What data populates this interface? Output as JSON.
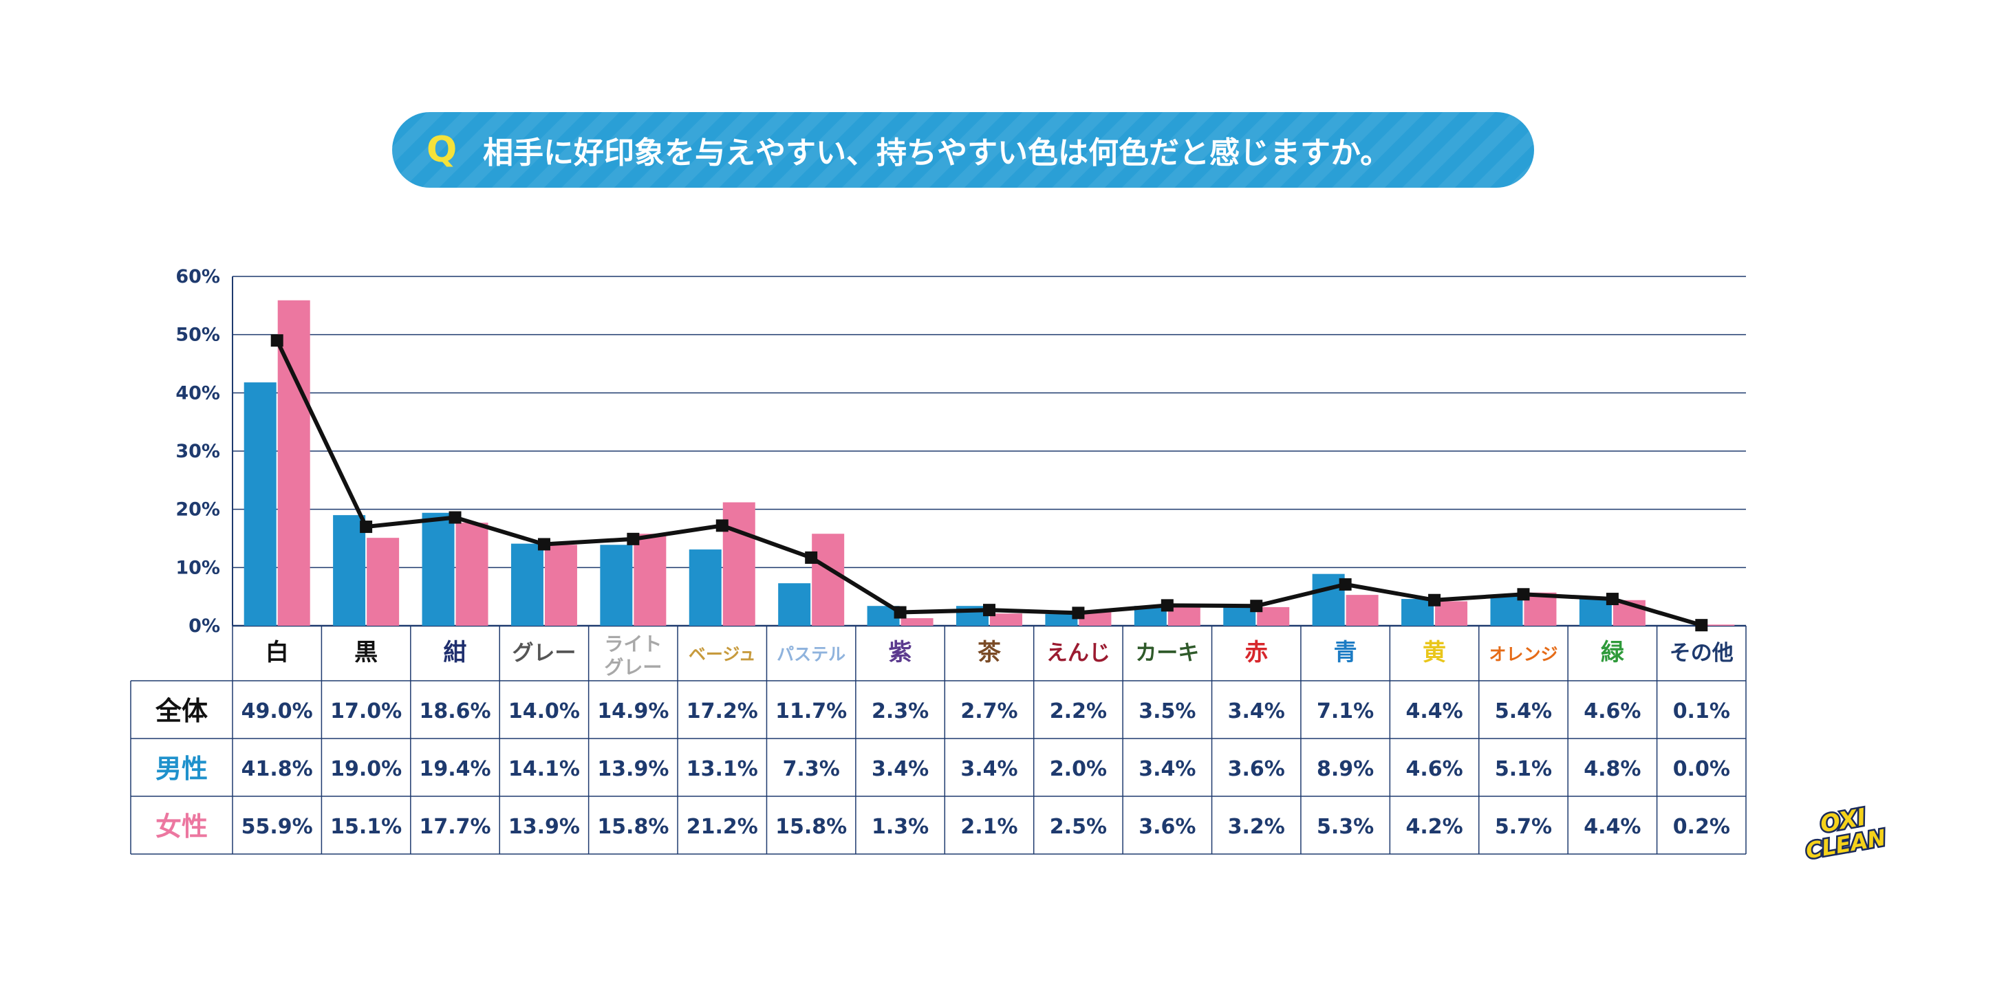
{
  "question": {
    "mark": "Q",
    "text": "相手に好印象を与えやすい、持ちやすい色は何色だと感じますか。"
  },
  "logo": {
    "line1": "OXI",
    "line2": "CLEAN"
  },
  "colors": {
    "male": "#1f91cc",
    "female": "#ec77a0",
    "overall": "#111111",
    "axis_text": "#1e3a6e",
    "grid": "#1e3a6e"
  },
  "chart_data": {
    "type": "bar",
    "title": "相手に好印象を与えやすい、持ちやすい色は何色だと感じますか。",
    "ylim": [
      0,
      60
    ],
    "yticks": [
      "0%",
      "10%",
      "20%",
      "30%",
      "40%",
      "50%",
      "60%"
    ],
    "ytick_values": [
      0,
      10,
      20,
      30,
      40,
      50,
      60
    ],
    "categories": [
      {
        "label": "白",
        "color": "#111111"
      },
      {
        "label": "黒",
        "color": "#111111"
      },
      {
        "label": "紺",
        "color": "#1f2f6e"
      },
      {
        "label": "グレー",
        "color": "#555555"
      },
      {
        "label": "ライト\nグレー",
        "color": "#a8a8a8"
      },
      {
        "label": "ベージュ",
        "color": "#c79a3c"
      },
      {
        "label": "パステル",
        "color": "#8fb3dd"
      },
      {
        "label": "紫",
        "color": "#5b3a8e"
      },
      {
        "label": "茶",
        "color": "#7a4a25"
      },
      {
        "label": "えんじ",
        "color": "#9b1b30"
      },
      {
        "label": "カーキ",
        "color": "#2f5a2a"
      },
      {
        "label": "赤",
        "color": "#d7262b"
      },
      {
        "label": "青",
        "color": "#1d7cc4"
      },
      {
        "label": "黄",
        "color": "#e9c61a"
      },
      {
        "label": "オレンジ",
        "color": "#e56b17"
      },
      {
        "label": "緑",
        "color": "#2e9a3a"
      },
      {
        "label": "その他",
        "color": "#1e3a6e"
      }
    ],
    "series": [
      {
        "name": "全体",
        "kind": "line",
        "label_color": "#111111",
        "values": [
          49.0,
          17.0,
          18.6,
          14.0,
          14.9,
          17.2,
          11.7,
          2.3,
          2.7,
          2.2,
          3.5,
          3.4,
          7.1,
          4.4,
          5.4,
          4.6,
          0.1
        ],
        "labels": [
          "49.0%",
          "17.0%",
          "18.6%",
          "14.0%",
          "14.9%",
          "17.2%",
          "11.7%",
          "2.3%",
          "2.7%",
          "2.2%",
          "3.5%",
          "3.4%",
          "7.1%",
          "4.4%",
          "5.4%",
          "4.6%",
          "0.1%"
        ]
      },
      {
        "name": "男性",
        "kind": "bar",
        "label_color": "#1f91cc",
        "values": [
          41.8,
          19.0,
          19.4,
          14.1,
          13.9,
          13.1,
          7.3,
          3.4,
          3.4,
          2.0,
          3.4,
          3.6,
          8.9,
          4.6,
          5.1,
          4.8,
          0.0
        ],
        "labels": [
          "41.8%",
          "19.0%",
          "19.4%",
          "14.1%",
          "13.9%",
          "13.1%",
          "7.3%",
          "3.4%",
          "3.4%",
          "2.0%",
          "3.4%",
          "3.6%",
          "8.9%",
          "4.6%",
          "5.1%",
          "4.8%",
          "0.0%"
        ]
      },
      {
        "name": "女性",
        "kind": "bar",
        "label_color": "#ec77a0",
        "values": [
          55.9,
          15.1,
          17.7,
          13.9,
          15.8,
          21.2,
          15.8,
          1.3,
          2.1,
          2.5,
          3.6,
          3.2,
          5.3,
          4.2,
          5.7,
          4.4,
          0.2
        ],
        "labels": [
          "55.9%",
          "15.1%",
          "17.7%",
          "13.9%",
          "15.8%",
          "21.2%",
          "15.8%",
          "1.3%",
          "2.1%",
          "2.5%",
          "3.6%",
          "3.2%",
          "5.3%",
          "4.2%",
          "5.7%",
          "4.4%",
          "0.2%"
        ]
      }
    ]
  }
}
